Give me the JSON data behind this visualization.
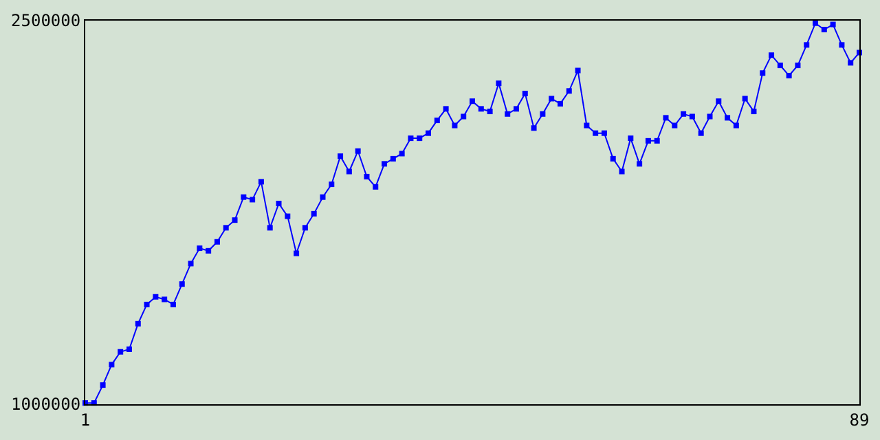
{
  "chart_data": {
    "type": "line",
    "x": [
      1,
      2,
      3,
      4,
      5,
      6,
      7,
      8,
      9,
      10,
      11,
      12,
      13,
      14,
      15,
      16,
      17,
      18,
      19,
      20,
      21,
      22,
      23,
      24,
      25,
      26,
      27,
      28,
      29,
      30,
      31,
      32,
      33,
      34,
      35,
      36,
      37,
      38,
      39,
      40,
      41,
      42,
      43,
      44,
      45,
      46,
      47,
      48,
      49,
      50,
      51,
      52,
      53,
      54,
      55,
      56,
      57,
      58,
      59,
      60,
      61,
      62,
      63,
      64,
      65,
      66,
      67,
      68,
      69,
      70,
      71,
      72,
      73,
      74,
      75,
      76,
      77,
      78,
      79,
      80,
      81,
      82,
      83,
      84,
      85,
      86,
      87,
      88,
      89
    ],
    "series": [
      {
        "color": "#0000ff",
        "values": [
          1005000,
          1005000,
          1075000,
          1155000,
          1205000,
          1215000,
          1315000,
          1390000,
          1420000,
          1410000,
          1390000,
          1470000,
          1550000,
          1610000,
          1600000,
          1635000,
          1690000,
          1720000,
          1810000,
          1800000,
          1870000,
          1690000,
          1785000,
          1735000,
          1590000,
          1690000,
          1745000,
          1810000,
          1860000,
          1970000,
          1910000,
          1990000,
          1890000,
          1850000,
          1940000,
          1960000,
          1980000,
          2040000,
          2040000,
          2060000,
          2110000,
          2155000,
          2090000,
          2125000,
          2185000,
          2155000,
          2145000,
          2255000,
          2135000,
          2155000,
          2215000,
          2080000,
          2135000,
          2195000,
          2175000,
          2225000,
          2305000,
          2090000,
          2060000,
          2060000,
          1960000,
          1910000,
          2040000,
          1940000,
          2030000,
          2030000,
          2120000,
          2090000,
          2135000,
          2125000,
          2060000,
          2125000,
          2185000,
          2120000,
          2090000,
          2195000,
          2145000,
          2295000,
          2365000,
          2325000,
          2285000,
          2325000,
          2405000,
          2490000,
          2465000,
          2485000,
          2405000,
          2335000,
          2375000
        ]
      }
    ],
    "xlim": [
      1,
      89
    ],
    "xticks": [
      1,
      89
    ],
    "ylim": [
      1000000,
      2500000
    ],
    "yticks": [
      1000000,
      2500000
    ],
    "marker": "square",
    "line_style": "solid"
  }
}
